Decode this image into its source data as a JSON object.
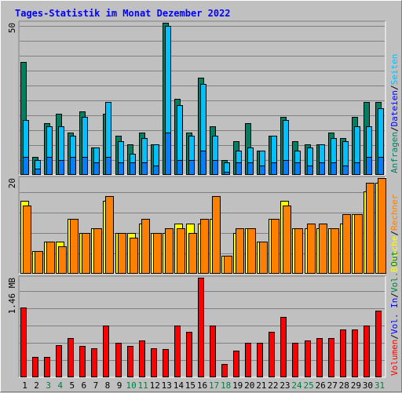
{
  "chart_data": {
    "type": "bar",
    "title": "Tages-Statistik im Monat Dezember 2022",
    "days": [
      "1",
      "2",
      "3",
      "4",
      "5",
      "6",
      "7",
      "8",
      "9",
      "10",
      "11",
      "12",
      "13",
      "14",
      "15",
      "16",
      "17",
      "18",
      "19",
      "20",
      "21",
      "22",
      "23",
      "24",
      "25",
      "26",
      "27",
      "28",
      "29",
      "30",
      "31"
    ],
    "weekend_days": [
      "3",
      "4",
      "10",
      "11",
      "17",
      "18",
      "24",
      "25",
      "31"
    ],
    "colors": {
      "title": "#0000ff",
      "weekday_label": "#000000",
      "weekend_label": "#008040",
      "panel_bg": "#c0c0c0",
      "grid": "#808080",
      "anfragen": "#008060",
      "dateien": "#00c0ff",
      "seiten": "#00e0ff",
      "besuche": "#ffff00",
      "rechner": "#ff8000",
      "volumen": "#ff0000",
      "vol_in": "#0000ff",
      "vol_out": "#008040"
    },
    "panels": [
      {
        "max_label": "50",
        "ymax": 50,
        "right_labels": [
          {
            "text": "Anfragen",
            "color": "#008060"
          },
          {
            "text": "/",
            "color": "#000000"
          },
          {
            "text": "Dateien",
            "color": "#0000ff"
          },
          {
            "text": "/",
            "color": "#000000"
          },
          {
            "text": "Seiten",
            "color": "#00c0ff"
          }
        ],
        "series": [
          {
            "name": "Anfragen",
            "color": "#008060",
            "values": [
              37,
              6,
              17,
              20,
              14,
              21,
              9,
              20,
              13,
              10,
              14,
              10,
              50,
              25,
              14,
              32,
              16,
              5,
              11,
              17,
              8,
              13,
              19,
              11,
              10,
              10,
              14,
              12,
              19,
              24,
              24
            ]
          },
          {
            "name": "Dateien",
            "color": "#00c0ff",
            "values": [
              18,
              5,
              16,
              16,
              13,
              19,
              9,
              24,
              11,
              7,
              12,
              10,
              49,
              23,
              13,
              30,
              13,
              4,
              8,
              9,
              8,
              13,
              18,
              8,
              9,
              10,
              12,
              11,
              16,
              16,
              22
            ]
          },
          {
            "name": "Seiten",
            "color": "#0080ff",
            "values": [
              6,
              2,
              6,
              5,
              6,
              6,
              4,
              6,
              4,
              4,
              4,
              3,
              14,
              5,
              5,
              8,
              5,
              1,
              4,
              4,
              3,
              4,
              5,
              4,
              3,
              4,
              4,
              3,
              4,
              6,
              6
            ]
          }
        ]
      },
      {
        "max_label": "20",
        "ymax": 21,
        "right_labels": [
          {
            "text": "Besuche",
            "color": "#ffff00"
          },
          {
            "text": "/",
            "color": "#000000"
          },
          {
            "text": "Rechner",
            "color": "#ff8000"
          }
        ],
        "series": [
          {
            "name": "Besuche",
            "color": "#ffff00",
            "values": [
              16,
              5,
              7,
              7,
              12,
              9,
              10,
              16,
              9,
              9,
              11,
              9,
              9,
              11,
              11,
              11,
              12,
              4,
              9,
              10,
              7,
              12,
              16,
              10,
              10,
              10,
              10,
              11,
              13,
              18,
              20
            ]
          },
          {
            "name": "Rechner",
            "color": "#ff8000",
            "values": [
              15,
              5,
              7,
              6,
              12,
              9,
              10,
              17,
              9,
              8,
              12,
              9,
              10,
              10,
              9,
              12,
              17,
              4,
              10,
              10,
              7,
              12,
              15,
              10,
              11,
              11,
              10,
              13,
              13,
              20,
              21
            ]
          }
        ]
      },
      {
        "max_label": "1.46 MB",
        "ymax": 1.46,
        "right_labels": [
          {
            "text": "Volumen",
            "color": "#ff0000"
          },
          {
            "text": "/",
            "color": "#000000"
          },
          {
            "text": "Vol. In",
            "color": "#0000ff"
          },
          {
            "text": "/",
            "color": "#000000"
          },
          {
            "text": "Vol. Out",
            "color": "#008040"
          }
        ],
        "series": [
          {
            "name": "Volumen",
            "color": "#ff0000",
            "values": [
              1.02,
              0.3,
              0.3,
              0.47,
              0.58,
              0.46,
              0.42,
              0.76,
              0.51,
              0.46,
              0.54,
              0.42,
              0.41,
              0.76,
              0.67,
              1.46,
              0.76,
              0.2,
              0.39,
              0.51,
              0.51,
              0.67,
              0.89,
              0.51,
              0.54,
              0.58,
              0.58,
              0.7,
              0.7,
              0.76,
              0.98
            ]
          }
        ]
      }
    ]
  }
}
